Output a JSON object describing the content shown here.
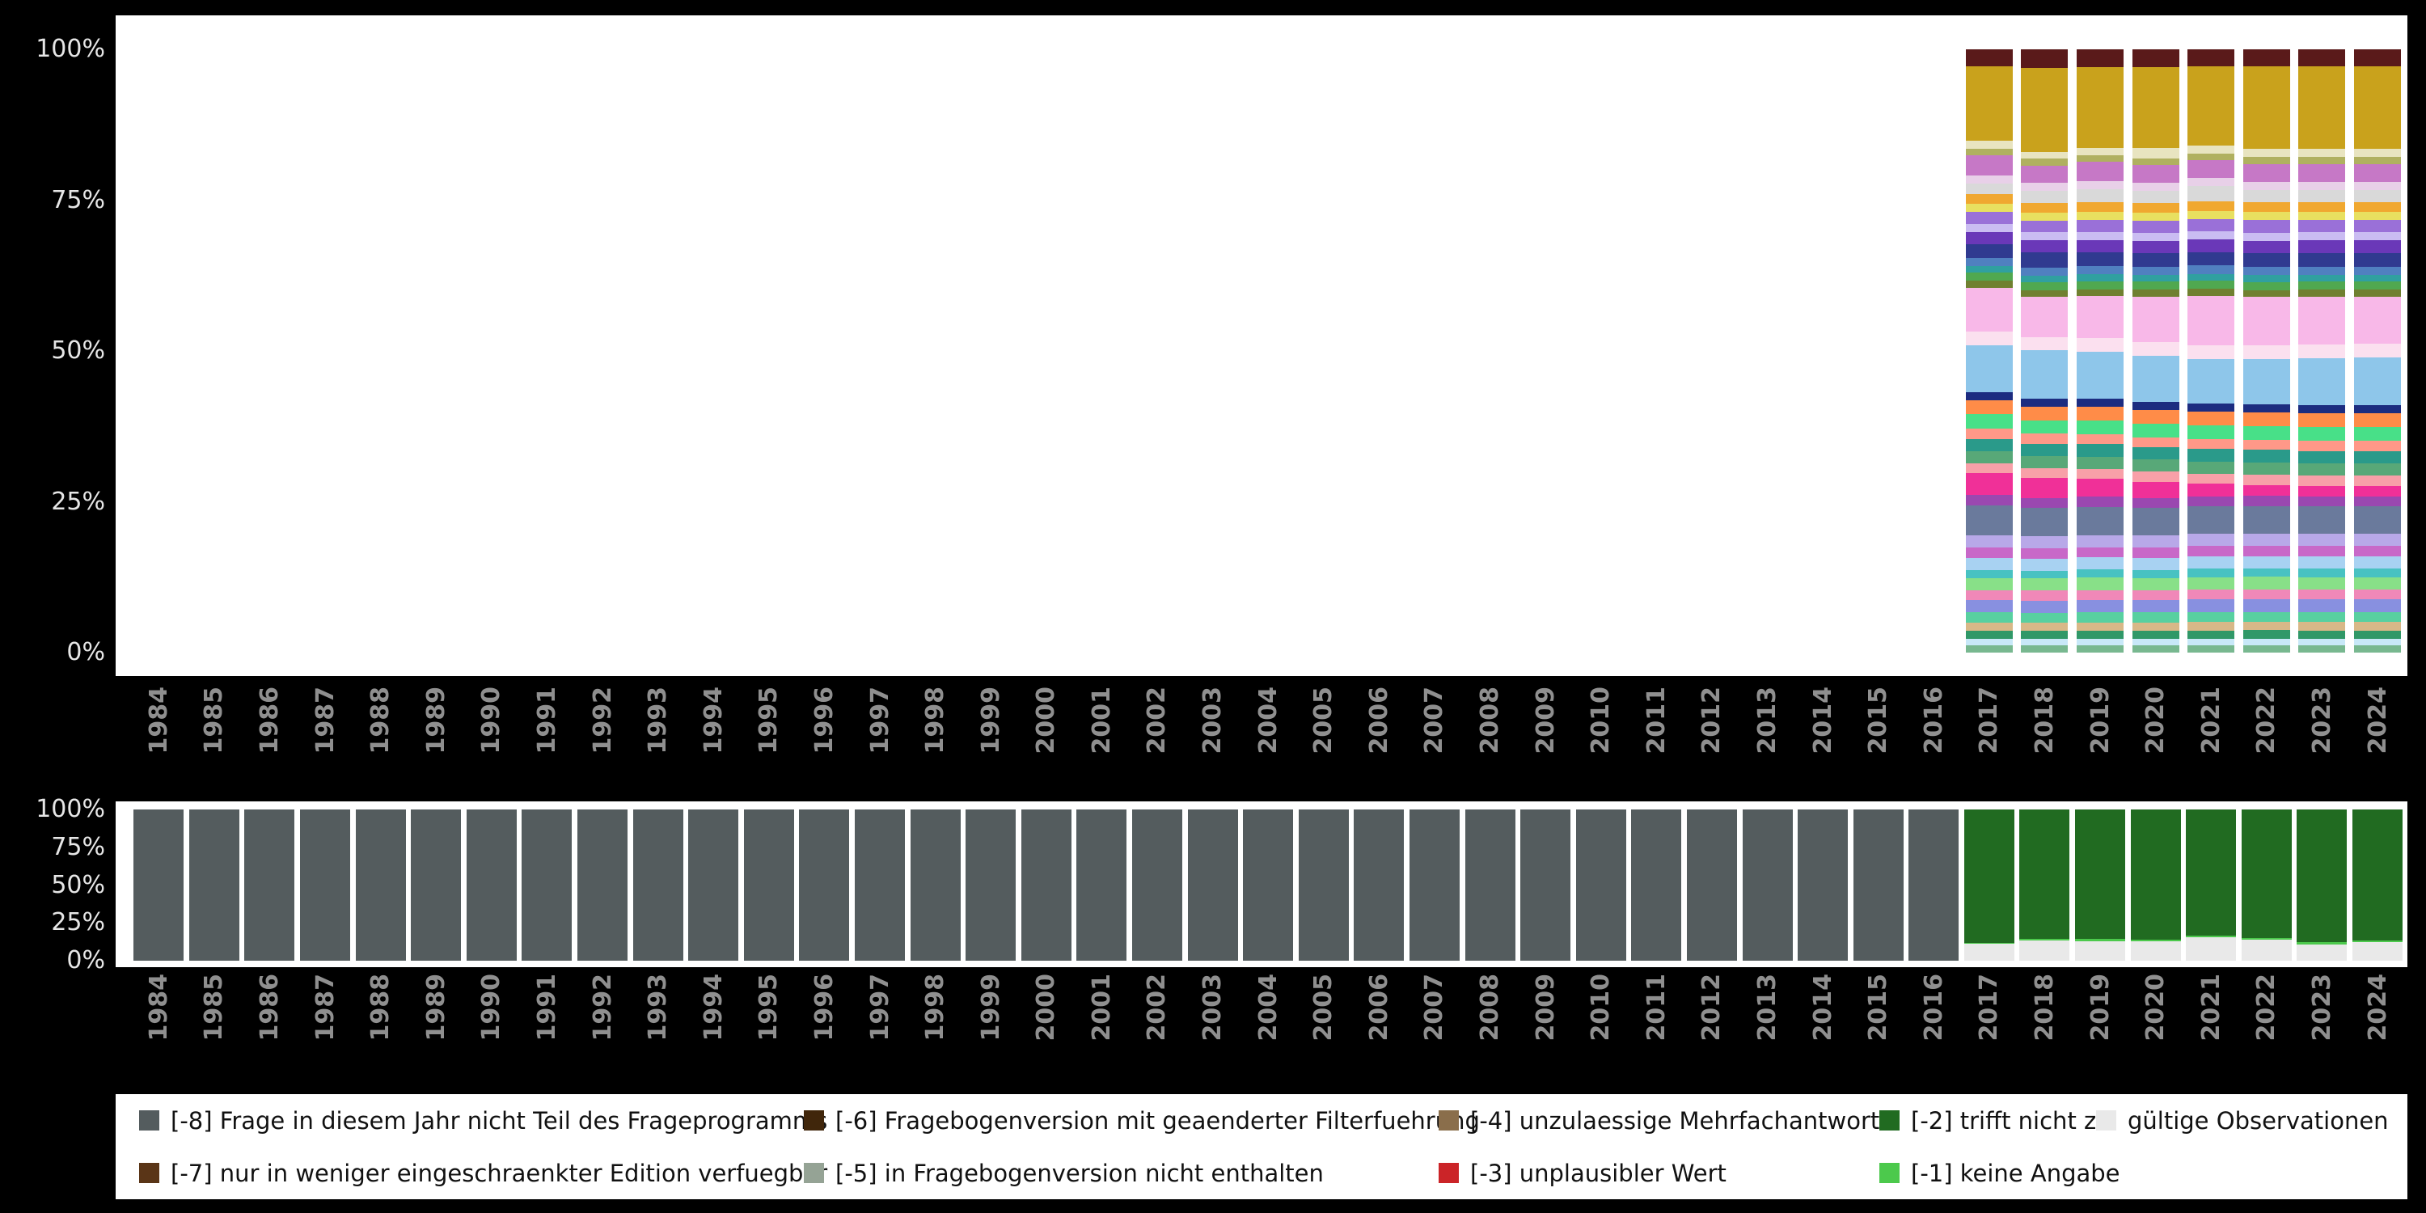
{
  "colors": {
    "background": "#000000",
    "panel": "#ffffff",
    "x_axis_label": "#8f8f8f",
    "y_axis_label": "#e6e6e6"
  },
  "axes": {
    "y_ticks": [
      "100%",
      "75%",
      "50%",
      "25%",
      "0%"
    ]
  },
  "years": [
    "1984",
    "1985",
    "1986",
    "1987",
    "1988",
    "1989",
    "1990",
    "1991",
    "1992",
    "1993",
    "1994",
    "1995",
    "1996",
    "1997",
    "1998",
    "1999",
    "2000",
    "2001",
    "2002",
    "2003",
    "2004",
    "2005",
    "2006",
    "2007",
    "2008",
    "2009",
    "2010",
    "2011",
    "2012",
    "2013",
    "2014",
    "2015",
    "2016",
    "2017",
    "2018",
    "2019",
    "2020",
    "2021",
    "2022",
    "2023",
    "2024"
  ],
  "series": {
    "-8": {
      "label": "[-8] Frage in diesem Jahr nicht Teil des Frageprogramms",
      "color": "#545c5e"
    },
    "-7": {
      "label": "[-7] nur in weniger eingeschraenkter Edition verfuegbar",
      "color": "#5a3517"
    },
    "-6": {
      "label": "[-6] Fragebogenversion mit geaenderter Filterfuehrung",
      "color": "#40260b"
    },
    "-5": {
      "label": "[-5] in Fragebogenversion nicht enthalten",
      "color": "#95a395"
    },
    "-4": {
      "label": "[-4] unzulaessige Mehrfachantwort",
      "color": "#8a6e4b"
    },
    "-3": {
      "label": "[-3] unplausibler Wert",
      "color": "#cb2428"
    },
    "-2": {
      "label": "[-2] trifft nicht zu",
      "color": "#216b21"
    },
    "-1": {
      "label": "[-1] keine Angabe",
      "color": "#4cc94c"
    },
    "valid": {
      "label": "gültige Observationen",
      "color": "#e9e9e9"
    }
  },
  "legend": {
    "rows": [
      [
        "-8",
        "-6",
        "-4",
        "-2",
        "valid"
      ],
      [
        "-7",
        "-5",
        "-3",
        "-1"
      ]
    ]
  },
  "chart_data": [
    {
      "type": "bar",
      "stacking": "percent",
      "title": "",
      "ylabel": "",
      "ylim": [
        0,
        100
      ],
      "categories": [
        "1984",
        "1985",
        "1986",
        "1987",
        "1988",
        "1989",
        "1990",
        "1991",
        "1992",
        "1993",
        "1994",
        "1995",
        "1996",
        "1997",
        "1998",
        "1999",
        "2000",
        "2001",
        "2002",
        "2003",
        "2004",
        "2005",
        "2006",
        "2007",
        "2008",
        "2009",
        "2010",
        "2011",
        "2012",
        "2013",
        "2014",
        "2015",
        "2016",
        "2017",
        "2018",
        "2019",
        "2020",
        "2021",
        "2022",
        "2023",
        "2024"
      ],
      "note": "answer-category distribution; bars only for 2017-2024, category names not shown in image, segment sizes estimated in percent top-to-bottom",
      "segment_colors": [
        "#5a1a1a",
        "#c9a21c",
        "#e8e4c0",
        "#b0b060",
        "#c678c6",
        "#e8d0e8",
        "#d9d9d9",
        "#f0a830",
        "#e8e060",
        "#9a70d8",
        "#cabcf2",
        "#6a38b8",
        "#303a90",
        "#5080c0",
        "#30a0a0",
        "#50a850",
        "#708030",
        "#f8b8e8",
        "#fbe0ef",
        "#8ec6ea",
        "#1c2c80",
        "#ff8c48",
        "#48e088",
        "#ff9888",
        "#2a9a8a",
        "#58a878",
        "#f8a0a8",
        "#f03098",
        "#9a48b0",
        "#6a7a9c",
        "#b8a8e8",
        "#c868c8",
        "#a8d2f2",
        "#48c2c2",
        "#88e088",
        "#f088b8",
        "#8890e0",
        "#58d0a0",
        "#d8b888",
        "#309868",
        "#c8e8f8",
        "#78b890"
      ],
      "bars": {
        "2017": [
          2.5,
          11,
          1.2,
          1,
          3,
          1.2,
          1.5,
          1.5,
          1.2,
          1.8,
          1.2,
          1.8,
          2,
          1.2,
          1,
          1.2,
          1,
          6.5,
          2,
          7,
          1.2,
          2,
          2.2,
          1.5,
          1.8,
          1.8,
          1.5,
          3.2,
          1.5,
          4.5,
          1.8,
          1.5,
          1.8,
          1.2,
          1.8,
          1.5,
          1.8,
          1.5,
          1.2,
          1.2,
          1,
          1
        ],
        "2018": [
          2.8,
          12.5,
          1,
          1,
          2.6,
          1.2,
          1.8,
          1.4,
          1.2,
          1.8,
          1.2,
          1.8,
          2.2,
          1.2,
          1,
          1.2,
          1,
          6,
          2,
          7.2,
          1.2,
          2,
          2,
          1.5,
          1.8,
          1.8,
          1.5,
          3,
          1.5,
          4.2,
          1.8,
          1.5,
          1.8,
          1.2,
          1.8,
          1.5,
          1.8,
          1.5,
          1.2,
          1.2,
          1,
          1
        ],
        "2019": [
          2.6,
          12,
          1,
          1,
          2.8,
          1.2,
          2,
          1.4,
          1.2,
          1.8,
          1.2,
          1.8,
          2,
          1.2,
          1,
          1.2,
          1,
          6.2,
          2,
          7,
          1.2,
          2,
          2,
          1.5,
          1.8,
          1.8,
          1.5,
          2.6,
          1.5,
          4.2,
          1.8,
          1.5,
          1.8,
          1.2,
          1.8,
          1.5,
          1.8,
          1.5,
          1.2,
          1.2,
          1,
          1
        ],
        "2020": [
          2.6,
          12,
          1.5,
          1,
          2.6,
          1.2,
          1.8,
          1.4,
          1.2,
          1.8,
          1.2,
          1.8,
          2,
          1.2,
          1,
          1.2,
          1,
          6.8,
          2,
          6.8,
          1.2,
          2,
          2,
          1.5,
          1.8,
          1.8,
          1.5,
          2.4,
          1.5,
          4,
          1.8,
          1.5,
          1.8,
          1.2,
          1.8,
          1.5,
          1.8,
          1.5,
          1.2,
          1.2,
          1,
          1
        ],
        "2021": [
          2.5,
          11.5,
          1.2,
          1,
          2.6,
          1.2,
          2.2,
          1.4,
          1.2,
          1.8,
          1.2,
          1.8,
          2,
          1.2,
          1,
          1.2,
          1,
          7.2,
          2,
          6.5,
          1.2,
          2,
          2,
          1.5,
          1.8,
          1.8,
          1.5,
          1.8,
          1.5,
          4,
          1.8,
          1.5,
          1.8,
          1.2,
          1.8,
          1.5,
          1.8,
          1.5,
          1.2,
          1.2,
          1,
          1
        ],
        "2022": [
          2.5,
          12,
          1.2,
          1,
          2.6,
          1.2,
          1.8,
          1.4,
          1.2,
          1.8,
          1.2,
          1.8,
          2,
          1.2,
          1,
          1.2,
          1,
          7,
          2,
          6.6,
          1.2,
          2,
          2,
          1.5,
          1.8,
          1.8,
          1.5,
          1.6,
          1.5,
          4,
          1.8,
          1.5,
          1.8,
          1.2,
          1.8,
          1.5,
          1.8,
          1.5,
          1.2,
          1.2,
          1,
          1
        ],
        "2023": [
          2.5,
          12,
          1.2,
          1,
          2.6,
          1.2,
          1.8,
          1.4,
          1.2,
          1.8,
          1.2,
          1.8,
          2,
          1.2,
          1,
          1.2,
          1,
          7,
          2,
          6.8,
          1.2,
          2,
          2,
          1.5,
          1.8,
          1.8,
          1.5,
          1.5,
          1.5,
          4,
          1.8,
          1.5,
          1.8,
          1.2,
          1.8,
          1.5,
          1.8,
          1.5,
          1.2,
          1.2,
          1,
          1
        ],
        "2024": [
          2.5,
          12,
          1.2,
          1,
          2.6,
          1.2,
          1.8,
          1.4,
          1.2,
          1.8,
          1.2,
          1.8,
          2,
          1.2,
          1,
          1.2,
          1,
          6.8,
          2,
          7,
          1.2,
          2,
          2,
          1.5,
          1.8,
          1.8,
          1.5,
          1.5,
          1.5,
          4,
          1.8,
          1.5,
          1.8,
          1.2,
          1.8,
          1.5,
          1.8,
          1.5,
          1.2,
          1.2,
          1,
          1
        ]
      }
    },
    {
      "type": "bar",
      "stacking": "percent",
      "title": "",
      "ylabel": "",
      "ylim": [
        0,
        100
      ],
      "categories": [
        "1984",
        "1985",
        "1986",
        "1987",
        "1988",
        "1989",
        "1990",
        "1991",
        "1992",
        "1993",
        "1994",
        "1995",
        "1996",
        "1997",
        "1998",
        "1999",
        "2000",
        "2001",
        "2002",
        "2003",
        "2004",
        "2005",
        "2006",
        "2007",
        "2008",
        "2009",
        "2010",
        "2011",
        "2012",
        "2013",
        "2014",
        "2015",
        "2016",
        "2017",
        "2018",
        "2019",
        "2020",
        "2021",
        "2022",
        "2023",
        "2024"
      ],
      "note": "missing/valid distribution per year; segments listed top-to-bottom in percent",
      "bars": {
        "1984": [
          [
            "-8",
            100
          ]
        ],
        "1985": [
          [
            "-8",
            100
          ]
        ],
        "1986": [
          [
            "-8",
            100
          ]
        ],
        "1987": [
          [
            "-8",
            100
          ]
        ],
        "1988": [
          [
            "-8",
            100
          ]
        ],
        "1989": [
          [
            "-8",
            100
          ]
        ],
        "1990": [
          [
            "-8",
            100
          ]
        ],
        "1991": [
          [
            "-8",
            100
          ]
        ],
        "1992": [
          [
            "-8",
            100
          ]
        ],
        "1993": [
          [
            "-8",
            100
          ]
        ],
        "1994": [
          [
            "-8",
            100
          ]
        ],
        "1995": [
          [
            "-8",
            100
          ]
        ],
        "1996": [
          [
            "-8",
            100
          ]
        ],
        "1997": [
          [
            "-8",
            100
          ]
        ],
        "1998": [
          [
            "-8",
            100
          ]
        ],
        "1999": [
          [
            "-8",
            100
          ]
        ],
        "2000": [
          [
            "-8",
            100
          ]
        ],
        "2001": [
          [
            "-8",
            100
          ]
        ],
        "2002": [
          [
            "-8",
            100
          ]
        ],
        "2003": [
          [
            "-8",
            100
          ]
        ],
        "2004": [
          [
            "-8",
            100
          ]
        ],
        "2005": [
          [
            "-8",
            100
          ]
        ],
        "2006": [
          [
            "-8",
            100
          ]
        ],
        "2007": [
          [
            "-8",
            100
          ]
        ],
        "2008": [
          [
            "-8",
            100
          ]
        ],
        "2009": [
          [
            "-8",
            100
          ]
        ],
        "2010": [
          [
            "-8",
            100
          ]
        ],
        "2011": [
          [
            "-8",
            100
          ]
        ],
        "2012": [
          [
            "-8",
            100
          ]
        ],
        "2013": [
          [
            "-8",
            100
          ]
        ],
        "2014": [
          [
            "-8",
            100
          ]
        ],
        "2015": [
          [
            "-8",
            100
          ]
        ],
        "2016": [
          [
            "-8",
            100
          ]
        ],
        "2017": [
          [
            "-2",
            88
          ],
          [
            "-1",
            1
          ],
          [
            "valid",
            11
          ]
        ],
        "2018": [
          [
            "-2",
            85.5
          ],
          [
            "-1",
            1
          ],
          [
            "valid",
            13.5
          ]
        ],
        "2019": [
          [
            "-2",
            85.5
          ],
          [
            "-1",
            1.5
          ],
          [
            "valid",
            13
          ]
        ],
        "2020": [
          [
            "-2",
            86
          ],
          [
            "-1",
            1
          ],
          [
            "valid",
            13
          ]
        ],
        "2021": [
          [
            "-2",
            83.5
          ],
          [
            "-1",
            1
          ],
          [
            "valid",
            15.5
          ]
        ],
        "2022": [
          [
            "-2",
            85
          ],
          [
            "-1",
            1
          ],
          [
            "valid",
            14
          ]
        ],
        "2023": [
          [
            "-2",
            87.5
          ],
          [
            "-1",
            2
          ],
          [
            "valid",
            10.5
          ]
        ],
        "2024": [
          [
            "-2",
            86.5
          ],
          [
            "-1",
            1
          ],
          [
            "valid",
            12.5
          ]
        ]
      }
    }
  ]
}
